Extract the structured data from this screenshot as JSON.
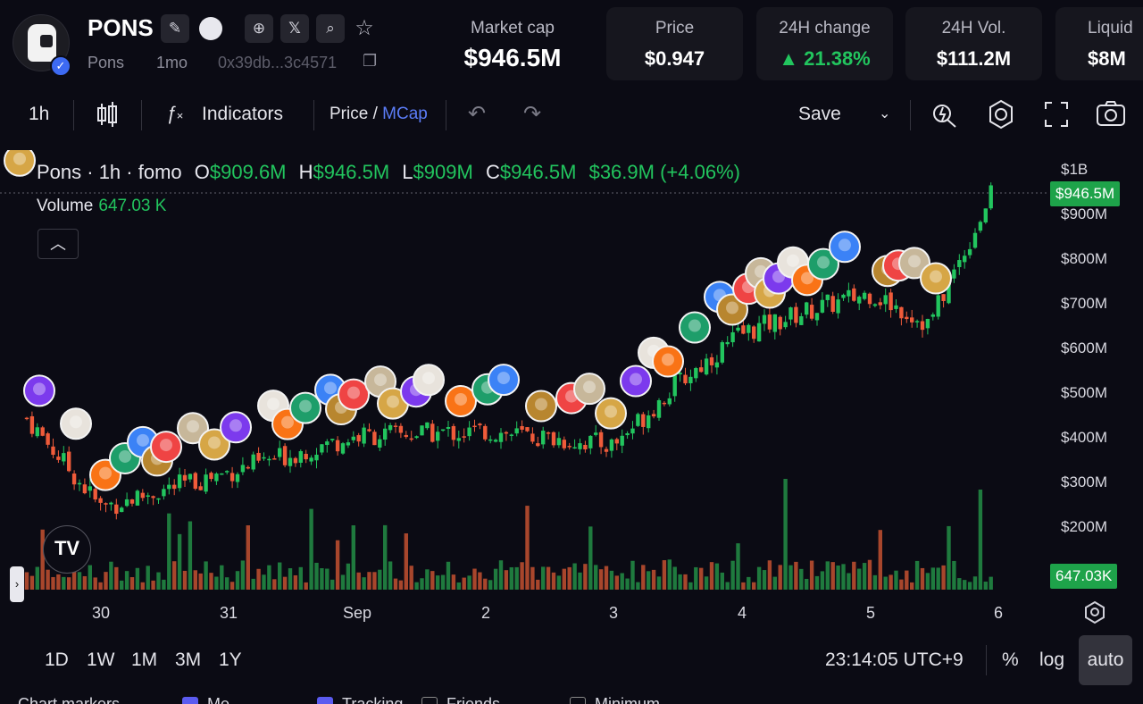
{
  "header": {
    "token_name": "PONS",
    "token_sub": "Pons",
    "age": "1mo",
    "address": "0x39db...3c4571",
    "icons": [
      "pen-icon",
      "pump-icon",
      "globe-icon",
      "x-icon",
      "search-icon",
      "star-icon"
    ]
  },
  "stats": {
    "market_cap": {
      "label": "Market cap",
      "value": "$946.5M"
    },
    "price": {
      "label": "Price",
      "value": "$0.947"
    },
    "change_24h": {
      "label": "24H change",
      "value": "▲ 21.38%"
    },
    "volume_24h": {
      "label": "24H Vol.",
      "value": "$111.2M"
    },
    "liquidity": {
      "label": "Liquid",
      "value": "$8M"
    }
  },
  "toolbar": {
    "interval": "1h",
    "indicators": "Indicators",
    "price_label": "Price",
    "slash": "/",
    "mcap_label": "MCap",
    "save": "Save"
  },
  "legend": {
    "prefix": "Pons · 1h · fomo",
    "o_key": "O",
    "o_val": "$909.6M",
    "h_key": "H",
    "h_val": "$946.5M",
    "l_key": "L",
    "l_val": "$909M",
    "c_key": "C",
    "c_val": "$946.5M",
    "change": "$36.9M (+4.06%)",
    "volume_key": "Volume",
    "volume_val": "647.03 K"
  },
  "chart_data": {
    "type": "candlestick",
    "interval": "1h",
    "y_axis_ticks": [
      "$1B",
      "$900M",
      "$800M",
      "$700M",
      "$600M",
      "$500M",
      "$400M",
      "$300M",
      "$200M"
    ],
    "x_axis_ticks": [
      "30",
      "31",
      "Sep",
      "2",
      "3",
      "4",
      "5",
      "6"
    ],
    "last_price_tag": "$946.5M",
    "last_volume_tag": "647.03K",
    "colors": {
      "up": "#22c55e",
      "down": "#ef5b3a"
    },
    "market_cap_trend_millions": [
      {
        "x": "30",
        "y": 240
      },
      {
        "x": "31",
        "y": 320
      },
      {
        "x": "Sep",
        "y": 400
      },
      {
        "x": "2",
        "y": 410
      },
      {
        "x": "3",
        "y": 380
      },
      {
        "x": "3.5",
        "y": 520
      },
      {
        "x": "4",
        "y": 630
      },
      {
        "x": "4.5",
        "y": 680
      },
      {
        "x": "5",
        "y": 720
      },
      {
        "x": "5.5",
        "y": 650
      },
      {
        "x": "6",
        "y": 946.5
      }
    ]
  },
  "bottombar": {
    "ranges": [
      "1D",
      "1W",
      "1M",
      "3M",
      "1Y"
    ],
    "time": "23:14:05 UTC+9",
    "percent": "%",
    "log": "log",
    "auto": "auto"
  },
  "footer": {
    "label": "Chart markers",
    "opt1": "Me",
    "opt2": "Tracking",
    "opt3": "Friends",
    "opt4": "Minimum"
  }
}
